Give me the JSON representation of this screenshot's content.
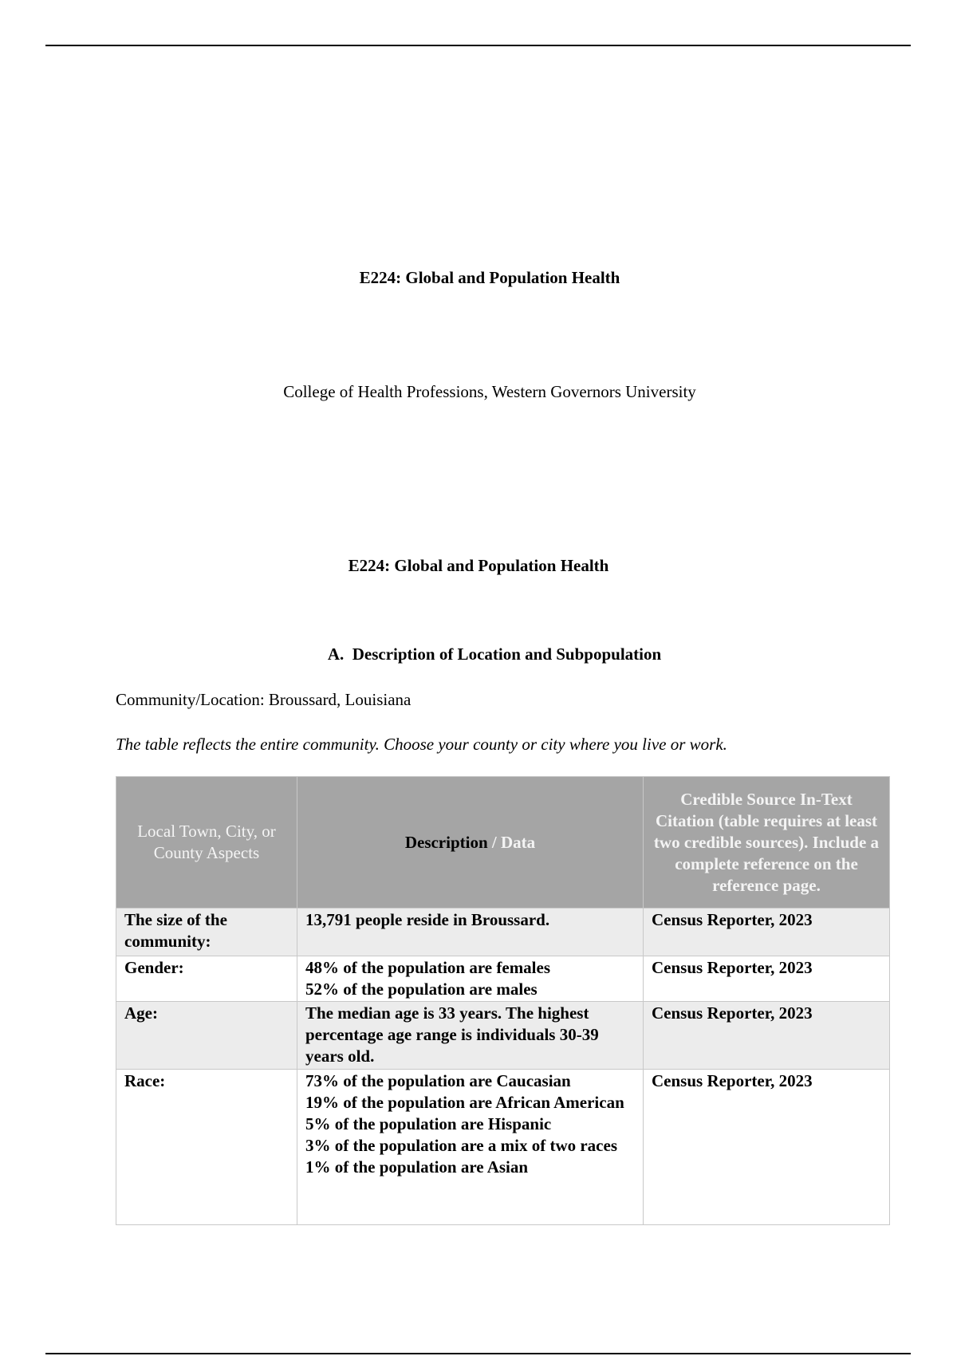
{
  "cover": {
    "title": "E224: Global and Population Health",
    "affiliation": "College of Health Professions, Western Governors University"
  },
  "body": {
    "title": "E224: Global and Population Health",
    "section_heading": "A.  Description of Location and Subpopulation",
    "community_line": "Community/Location: Broussard, Louisiana",
    "instruction": "The table reflects the entire community. Choose your county or city where you live or work."
  },
  "table": {
    "headers": {
      "col1": "Local Town, City, or County Aspects",
      "col2_a": "Description",
      "col2_b": " / Data",
      "col3": "Credible Source In-Text Citation (table requires at least two credible sources). Include a complete reference on the reference page."
    },
    "rows": [
      {
        "aspect": "The size of the community:",
        "description": [
          "13,791 people reside in Broussard."
        ],
        "source": "Census Reporter, 2023"
      },
      {
        "aspect": "Gender:",
        "description": [
          "48% of the population are females",
          "52% of the population are males"
        ],
        "source": "Census Reporter, 2023"
      },
      {
        "aspect": "Age:",
        "description": [
          "The median age is 33 years. The highest percentage age range is individuals 30-39 years old."
        ],
        "source": "Census Reporter, 2023"
      },
      {
        "aspect": "Race:",
        "description": [
          "73% of the population are Caucasian",
          "19% of the population are African American",
          "5% of the population are Hispanic",
          "3% of the population are a mix of two races",
          "1% of the population are Asian"
        ],
        "source": "Census Reporter, 2023"
      }
    ]
  }
}
